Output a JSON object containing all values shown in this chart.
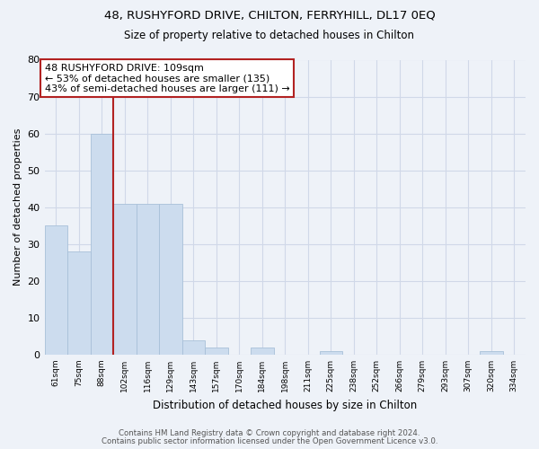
{
  "title1": "48, RUSHYFORD DRIVE, CHILTON, FERRYHILL, DL17 0EQ",
  "title2": "Size of property relative to detached houses in Chilton",
  "xlabel": "Distribution of detached houses by size in Chilton",
  "ylabel": "Number of detached properties",
  "categories": [
    "61sqm",
    "75sqm",
    "88sqm",
    "102sqm",
    "116sqm",
    "129sqm",
    "143sqm",
    "157sqm",
    "170sqm",
    "184sqm",
    "198sqm",
    "211sqm",
    "225sqm",
    "238sqm",
    "252sqm",
    "266sqm",
    "279sqm",
    "293sqm",
    "307sqm",
    "320sqm",
    "334sqm"
  ],
  "values": [
    35,
    28,
    60,
    41,
    41,
    41,
    4,
    2,
    0,
    2,
    0,
    0,
    1,
    0,
    0,
    0,
    0,
    0,
    0,
    1,
    0
  ],
  "bar_color": "#ccdcee",
  "bar_edge_color": "#a8c0d8",
  "vline_x": 3.0,
  "vline_color": "#b22222",
  "annotation_line1": "48 RUSHYFORD DRIVE: 109sqm",
  "annotation_line2": "← 53% of detached houses are smaller (135)",
  "annotation_line3": "43% of semi-detached houses are larger (111) →",
  "annotation_box_color": "white",
  "annotation_box_edge": "#b22222",
  "ylim": [
    0,
    80
  ],
  "yticks": [
    0,
    10,
    20,
    30,
    40,
    50,
    60,
    70,
    80
  ],
  "footer1": "Contains HM Land Registry data © Crown copyright and database right 2024.",
  "footer2": "Contains public sector information licensed under the Open Government Licence v3.0.",
  "bg_color": "#eef2f8",
  "grid_color": "#d0d8e8"
}
